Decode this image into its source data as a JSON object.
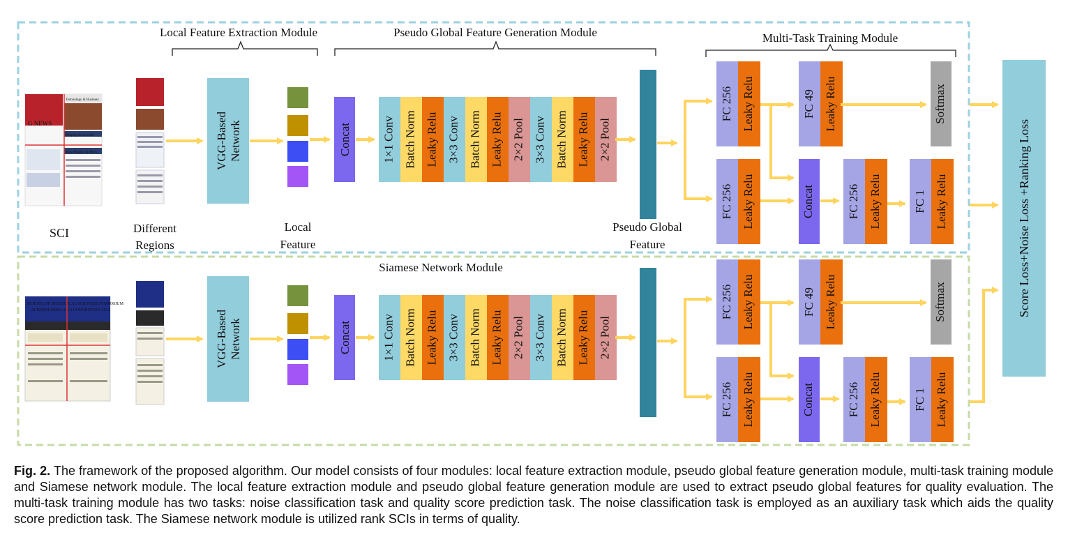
{
  "modules": {
    "local": "Local Feature Extraction Module",
    "pseudo": "Pseudo Global Feature Generation Module",
    "multitask": "Multi-Task Training Module",
    "siamese": "Siamese Network Module"
  },
  "labels": {
    "sci": "SCI",
    "regions": [
      "Different",
      "Regions"
    ],
    "local_feature": [
      "Local",
      "Feature"
    ],
    "pseudo_global_feature": [
      "Pseudo Global",
      "Feature"
    ]
  },
  "blocks": {
    "vgg": [
      "VGG-Based",
      "Network"
    ],
    "concat": "Concat",
    "pipeline": [
      "1×1 Conv",
      "Batch Norm",
      "Leaky Relu",
      "3×3 Conv",
      "Batch Norm",
      "Leaky Relu",
      "2×2 Pool",
      "3×3 Conv",
      "Batch Norm",
      "Leaky Relu",
      "2×2 Pool"
    ],
    "fc256": "FC 256",
    "fc49": "FC  49",
    "fc49_b": "FC 49",
    "fc1": "FC 1",
    "leaky": "Leaky Relu",
    "softmax": "Softmax",
    "loss": "Score Loss+Noise Loss +Ranking Loss"
  },
  "doc_thumb": {
    "top_title": "Technology & Business",
    "headline": "Reaping the rewards",
    "news_tag": "G NEWS",
    "popular": "Most Popular in News",
    "school": "SCHOOL OF BIOLOGICAL SCIENCES SYMPOSIUM",
    "school2": "AT BIOPHARMA ASIA CONVENTION 2012"
  },
  "colors": {
    "vgg": "#92cddc",
    "concat": "#7b68ee",
    "conv": "#92cddc",
    "bn": "#ffd966",
    "relu": "#ea700d",
    "pool": "#da9694",
    "fc": "#a5a5e6",
    "softmax": "#a6a6a6",
    "pseudo": "#31849b",
    "arrow": "#ffd45f",
    "top_border": "#9dd1e0",
    "bottom_border": "#c6dba7",
    "feat1": "#76923c",
    "feat2": "#bf9000",
    "feat3": "#3d4ef5",
    "feat4": "#a455f6"
  },
  "caption": {
    "label": "Fig. 2.",
    "text": "The framework of the proposed algorithm. Our model consists of four modules: local feature extraction module, pseudo global feature generation module, multi-task training module and Siamese network module. The local feature extraction module and pseudo global feature generation module are used to extract pseudo global features for quality evaluation. The multi-task training module has two tasks: noise classification task and quality score prediction task. The noise classification task is employed as an auxiliary task which aids the quality score prediction task. The Siamese network module is utilized rank SCIs in terms of quality."
  }
}
